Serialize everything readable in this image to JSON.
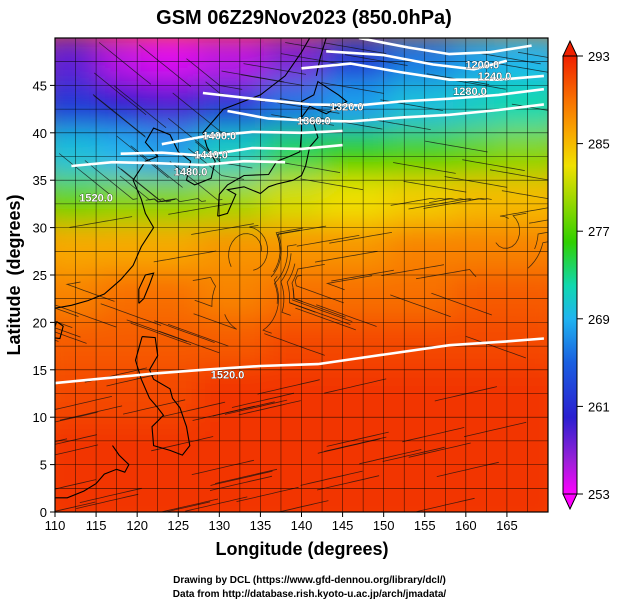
{
  "chart_data": {
    "type": "heatmap",
    "title": "GSM 06Z29Nov2023 (850.0hPa)",
    "xlabel": "Longitude (degrees)",
    "ylabel": "Latitude  (degrees)",
    "xlim": [
      110,
      170
    ],
    "ylim": [
      0,
      50
    ],
    "x_ticks": [
      110,
      115,
      120,
      125,
      130,
      135,
      140,
      145,
      150,
      155,
      160,
      165
    ],
    "y_ticks": [
      0,
      5,
      10,
      15,
      20,
      25,
      30,
      35,
      40,
      45
    ],
    "grid": true,
    "colorbar": {
      "position": "right",
      "min": 253,
      "max": 293,
      "ticks": [
        293,
        285,
        277,
        269,
        261,
        253
      ],
      "stops": [
        {
          "value": 253,
          "color": "#ff00ff"
        },
        {
          "value": 256,
          "color": "#9c1fd8"
        },
        {
          "value": 260,
          "color": "#2a1fd0"
        },
        {
          "value": 265,
          "color": "#1a5fe0"
        },
        {
          "value": 269,
          "color": "#20b4f0"
        },
        {
          "value": 272,
          "color": "#10d8b0"
        },
        {
          "value": 276,
          "color": "#30d000"
        },
        {
          "value": 280,
          "color": "#a0d800"
        },
        {
          "value": 283,
          "color": "#f0e000"
        },
        {
          "value": 286,
          "color": "#f8a800"
        },
        {
          "value": 289,
          "color": "#f87000"
        },
        {
          "value": 293,
          "color": "#f02000"
        }
      ]
    },
    "temperature_samples": [
      {
        "lon": 112,
        "lat": 47,
        "value": 258
      },
      {
        "lon": 120,
        "lat": 47,
        "value": 255
      },
      {
        "lon": 125,
        "lat": 47,
        "value": 254
      },
      {
        "lon": 132,
        "lat": 47,
        "value": 255
      },
      {
        "lon": 140,
        "lat": 47,
        "value": 257
      },
      {
        "lon": 147,
        "lat": 47,
        "value": 262
      },
      {
        "lon": 155,
        "lat": 47,
        "value": 266
      },
      {
        "lon": 163,
        "lat": 47,
        "value": 268
      },
      {
        "lon": 168,
        "lat": 47,
        "value": 269
      },
      {
        "lon": 112,
        "lat": 42,
        "value": 262
      },
      {
        "lon": 120,
        "lat": 42,
        "value": 260
      },
      {
        "lon": 125,
        "lat": 42,
        "value": 259
      },
      {
        "lon": 132,
        "lat": 42,
        "value": 262
      },
      {
        "lon": 140,
        "lat": 42,
        "value": 266
      },
      {
        "lon": 147,
        "lat": 42,
        "value": 268
      },
      {
        "lon": 155,
        "lat": 42,
        "value": 270
      },
      {
        "lon": 163,
        "lat": 42,
        "value": 271
      },
      {
        "lon": 168,
        "lat": 42,
        "value": 272
      },
      {
        "lon": 112,
        "lat": 37,
        "value": 270
      },
      {
        "lon": 120,
        "lat": 37,
        "value": 269
      },
      {
        "lon": 125,
        "lat": 37,
        "value": 268
      },
      {
        "lon": 132,
        "lat": 37,
        "value": 271
      },
      {
        "lon": 140,
        "lat": 37,
        "value": 274
      },
      {
        "lon": 147,
        "lat": 37,
        "value": 276
      },
      {
        "lon": 155,
        "lat": 37,
        "value": 277
      },
      {
        "lon": 163,
        "lat": 37,
        "value": 278
      },
      {
        "lon": 168,
        "lat": 37,
        "value": 279
      },
      {
        "lon": 112,
        "lat": 32,
        "value": 278
      },
      {
        "lon": 120,
        "lat": 32,
        "value": 279
      },
      {
        "lon": 125,
        "lat": 32,
        "value": 279
      },
      {
        "lon": 132,
        "lat": 32,
        "value": 280
      },
      {
        "lon": 140,
        "lat": 32,
        "value": 282
      },
      {
        "lon": 147,
        "lat": 32,
        "value": 283
      },
      {
        "lon": 155,
        "lat": 32,
        "value": 284
      },
      {
        "lon": 163,
        "lat": 32,
        "value": 285
      },
      {
        "lon": 168,
        "lat": 32,
        "value": 285
      },
      {
        "lon": 112,
        "lat": 27,
        "value": 286
      },
      {
        "lon": 120,
        "lat": 27,
        "value": 286
      },
      {
        "lon": 125,
        "lat": 27,
        "value": 286
      },
      {
        "lon": 132,
        "lat": 27,
        "value": 287
      },
      {
        "lon": 140,
        "lat": 27,
        "value": 287
      },
      {
        "lon": 147,
        "lat": 27,
        "value": 287
      },
      {
        "lon": 155,
        "lat": 27,
        "value": 288
      },
      {
        "lon": 163,
        "lat": 27,
        "value": 288
      },
      {
        "lon": 168,
        "lat": 27,
        "value": 288
      },
      {
        "lon": 112,
        "lat": 22,
        "value": 288
      },
      {
        "lon": 120,
        "lat": 22,
        "value": 289
      },
      {
        "lon": 125,
        "lat": 22,
        "value": 289
      },
      {
        "lon": 132,
        "lat": 22,
        "value": 288
      },
      {
        "lon": 140,
        "lat": 22,
        "value": 289
      },
      {
        "lon": 147,
        "lat": 22,
        "value": 289
      },
      {
        "lon": 155,
        "lat": 22,
        "value": 289
      },
      {
        "lon": 163,
        "lat": 22,
        "value": 290
      },
      {
        "lon": 168,
        "lat": 22,
        "value": 290
      },
      {
        "lon": 112,
        "lat": 17,
        "value": 290
      },
      {
        "lon": 120,
        "lat": 17,
        "value": 290
      },
      {
        "lon": 125,
        "lat": 17,
        "value": 290
      },
      {
        "lon": 132,
        "lat": 17,
        "value": 290
      },
      {
        "lon": 140,
        "lat": 17,
        "value": 291
      },
      {
        "lon": 147,
        "lat": 17,
        "value": 291
      },
      {
        "lon": 155,
        "lat": 17,
        "value": 291
      },
      {
        "lon": 163,
        "lat": 17,
        "value": 291
      },
      {
        "lon": 168,
        "lat": 17,
        "value": 291
      },
      {
        "lon": 112,
        "lat": 12,
        "value": 291
      },
      {
        "lon": 120,
        "lat": 12,
        "value": 291
      },
      {
        "lon": 125,
        "lat": 12,
        "value": 291
      },
      {
        "lon": 132,
        "lat": 12,
        "value": 292
      },
      {
        "lon": 140,
        "lat": 12,
        "value": 292
      },
      {
        "lon": 147,
        "lat": 12,
        "value": 292
      },
      {
        "lon": 155,
        "lat": 12,
        "value": 292
      },
      {
        "lon": 163,
        "lat": 12,
        "value": 292
      },
      {
        "lon": 168,
        "lat": 12,
        "value": 292
      },
      {
        "lon": 112,
        "lat": 6,
        "value": 292
      },
      {
        "lon": 120,
        "lat": 6,
        "value": 292
      },
      {
        "lon": 125,
        "lat": 6,
        "value": 292
      },
      {
        "lon": 132,
        "lat": 6,
        "value": 292
      },
      {
        "lon": 140,
        "lat": 6,
        "value": 292
      },
      {
        "lon": 147,
        "lat": 6,
        "value": 292
      },
      {
        "lon": 155,
        "lat": 6,
        "value": 292
      },
      {
        "lon": 163,
        "lat": 6,
        "value": 292
      },
      {
        "lon": 168,
        "lat": 6,
        "value": 292
      },
      {
        "lon": 112,
        "lat": 1,
        "value": 292
      },
      {
        "lon": 120,
        "lat": 1,
        "value": 292
      },
      {
        "lon": 125,
        "lat": 1,
        "value": 292
      },
      {
        "lon": 132,
        "lat": 1,
        "value": 292
      },
      {
        "lon": 140,
        "lat": 1,
        "value": 292
      },
      {
        "lon": 147,
        "lat": 1,
        "value": 292
      },
      {
        "lon": 155,
        "lat": 1,
        "value": 292
      },
      {
        "lon": 163,
        "lat": 1,
        "value": 292
      },
      {
        "lon": 168,
        "lat": 1,
        "value": 292
      }
    ],
    "height_contours": [
      {
        "label": "1280.0",
        "points": [
          [
            140,
            46.8
          ],
          [
            146,
            47.3
          ],
          [
            152,
            46.4
          ],
          [
            158,
            45.6
          ],
          [
            164,
            45.6
          ],
          [
            169.5,
            46.0
          ]
        ]
      },
      {
        "label": "1240.0",
        "points": [
          [
            143,
            48.6
          ],
          [
            150,
            48.2
          ],
          [
            156,
            47.2
          ],
          [
            161,
            46.7
          ],
          [
            165,
            47.6
          ]
        ]
      },
      {
        "label": "1200.0",
        "points": [
          [
            147,
            50.0
          ],
          [
            153,
            49.0
          ],
          [
            158,
            48.3
          ],
          [
            163,
            48.5
          ],
          [
            168,
            49.2
          ]
        ]
      },
      {
        "label": "1320.0",
        "points": [
          [
            128,
            44.2
          ],
          [
            135,
            43.5
          ],
          [
            141,
            43.0
          ],
          [
            147,
            42.9
          ],
          [
            152,
            43.3
          ],
          [
            158,
            43.6
          ],
          [
            164,
            44.0
          ],
          [
            169.5,
            44.6
          ]
        ]
      },
      {
        "label": "1360.0",
        "points": [
          [
            131,
            42.3
          ],
          [
            136,
            41.5
          ],
          [
            141,
            41.3
          ],
          [
            146,
            41.2
          ],
          [
            152,
            41.6
          ],
          [
            158,
            41.9
          ],
          [
            164,
            42.4
          ],
          [
            169.5,
            43.0
          ]
        ]
      },
      {
        "label": "1400.0",
        "points": [
          [
            123,
            38.8
          ],
          [
            128,
            39.6
          ],
          [
            134,
            40.1
          ],
          [
            140,
            40.0
          ],
          [
            145,
            40.2
          ]
        ]
      },
      {
        "label": "1440.0",
        "points": [
          [
            118,
            37.8
          ],
          [
            123,
            37.9
          ],
          [
            128,
            37.6
          ],
          [
            134,
            38.4
          ],
          [
            140,
            38.3
          ],
          [
            145,
            38.7
          ]
        ]
      },
      {
        "label": "1480.0",
        "points": [
          [
            112,
            36.5
          ],
          [
            117,
            36.9
          ],
          [
            122,
            36.8
          ],
          [
            128,
            36.6
          ],
          [
            133,
            37.0
          ],
          [
            138,
            36.9
          ]
        ]
      },
      {
        "label": "1520.0",
        "points": [
          [
            110,
            13.6
          ],
          [
            116,
            14.1
          ],
          [
            122,
            14.6
          ],
          [
            128,
            15.0
          ],
          [
            135,
            15.4
          ],
          [
            142,
            15.6
          ],
          [
            150,
            16.6
          ],
          [
            158,
            17.6
          ],
          [
            165,
            18.0
          ],
          [
            169.5,
            18.3
          ]
        ]
      }
    ],
    "contour_labels": [
      {
        "text": "1200.0",
        "lon": 162,
        "lat": 47.2
      },
      {
        "text": "1240.0",
        "lon": 163.5,
        "lat": 46.0
      },
      {
        "text": "1280.0",
        "lon": 160.5,
        "lat": 44.4
      },
      {
        "text": "1320.0",
        "lon": 145.5,
        "lat": 42.8
      },
      {
        "text": "1360.0",
        "lon": 141.5,
        "lat": 41.3
      },
      {
        "text": "1400.0",
        "lon": 130.0,
        "lat": 39.7
      },
      {
        "text": "1440.0",
        "lon": 129.0,
        "lat": 37.7
      },
      {
        "text": "1480.0",
        "lon": 126.5,
        "lat": 35.9
      },
      {
        "text": "1520.0",
        "lon": 115.0,
        "lat": 33.2
      },
      {
        "text": "1520.0",
        "lon": 131.0,
        "lat": 14.5
      }
    ]
  },
  "footer": {
    "credit_line1": "Drawing by DCL (https://www.gfd-dennou.org/library/dcl/)",
    "credit_line2": "Data from http://database.rish.kyoto-u.ac.jp/arch/jmadata/"
  }
}
